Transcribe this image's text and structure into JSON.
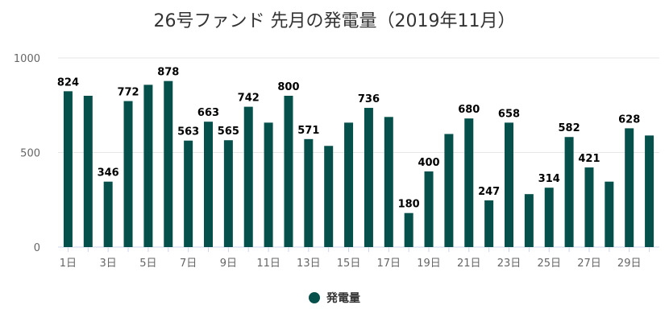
{
  "chart_data": {
    "type": "bar",
    "title": "26号ファンド 先月の発電量（2019年11月）",
    "categories": [
      "1日",
      "2日",
      "3日",
      "4日",
      "5日",
      "6日",
      "7日",
      "8日",
      "9日",
      "10日",
      "11日",
      "12日",
      "13日",
      "14日",
      "15日",
      "16日",
      "17日",
      "18日",
      "19日",
      "20日",
      "21日",
      "22日",
      "23日",
      "24日",
      "25日",
      "26日",
      "27日",
      "28日",
      "29日",
      "30日"
    ],
    "visible_x_tick_labels": [
      "1日",
      "3日",
      "5日",
      "7日",
      "9日",
      "11日",
      "13日",
      "15日",
      "17日",
      "19日",
      "21日",
      "23日",
      "25日",
      "27日",
      "29日"
    ],
    "series": [
      {
        "name": "発電量",
        "color": "#06504b",
        "values": [
          824,
          800,
          346,
          772,
          858,
          878,
          563,
          663,
          565,
          742,
          658,
          800,
          571,
          535,
          658,
          736,
          688,
          180,
          400,
          598,
          680,
          247,
          658,
          280,
          314,
          582,
          421,
          346,
          628,
          590
        ],
        "labeled_values": [
          824,
          null,
          346,
          772,
          null,
          878,
          563,
          663,
          565,
          742,
          null,
          800,
          571,
          null,
          null,
          736,
          null,
          180,
          400,
          null,
          680,
          247,
          658,
          null,
          314,
          582,
          421,
          null,
          628,
          null
        ]
      }
    ],
    "yticks": [
      0,
      500,
      1000
    ],
    "ylim": [
      0,
      1000
    ],
    "grid": true,
    "legend_position": "bottom"
  }
}
